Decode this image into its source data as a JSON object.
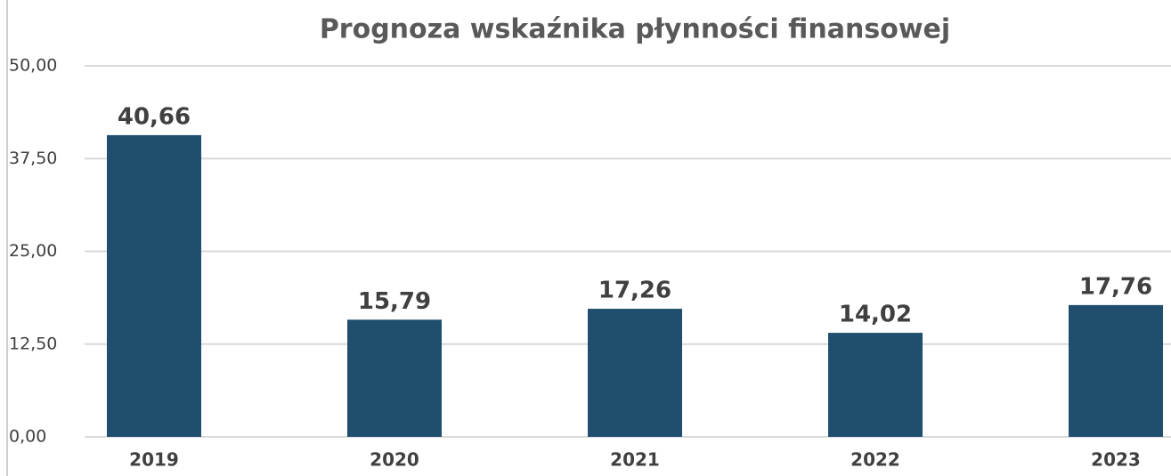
{
  "chart_data": {
    "type": "bar",
    "title": "Prognoza wskaźnika płynności finansowej",
    "categories": [
      "2019",
      "2020",
      "2021",
      "2022",
      "2023"
    ],
    "values": [
      40.66,
      15.79,
      17.26,
      14.02,
      17.76
    ],
    "value_labels": [
      "40,66",
      "15,79",
      "17,26",
      "14,02",
      "17,76"
    ],
    "color": "#1f4e6e",
    "ylim": [
      0,
      50
    ],
    "yticks": [
      {
        "value": 0,
        "label": "0,00"
      },
      {
        "value": 12.5,
        "label": "12,50"
      },
      {
        "value": 25,
        "label": "25,00"
      },
      {
        "value": 37.5,
        "label": "37,50"
      },
      {
        "value": 50,
        "label": "50,00"
      }
    ],
    "grid": true
  }
}
